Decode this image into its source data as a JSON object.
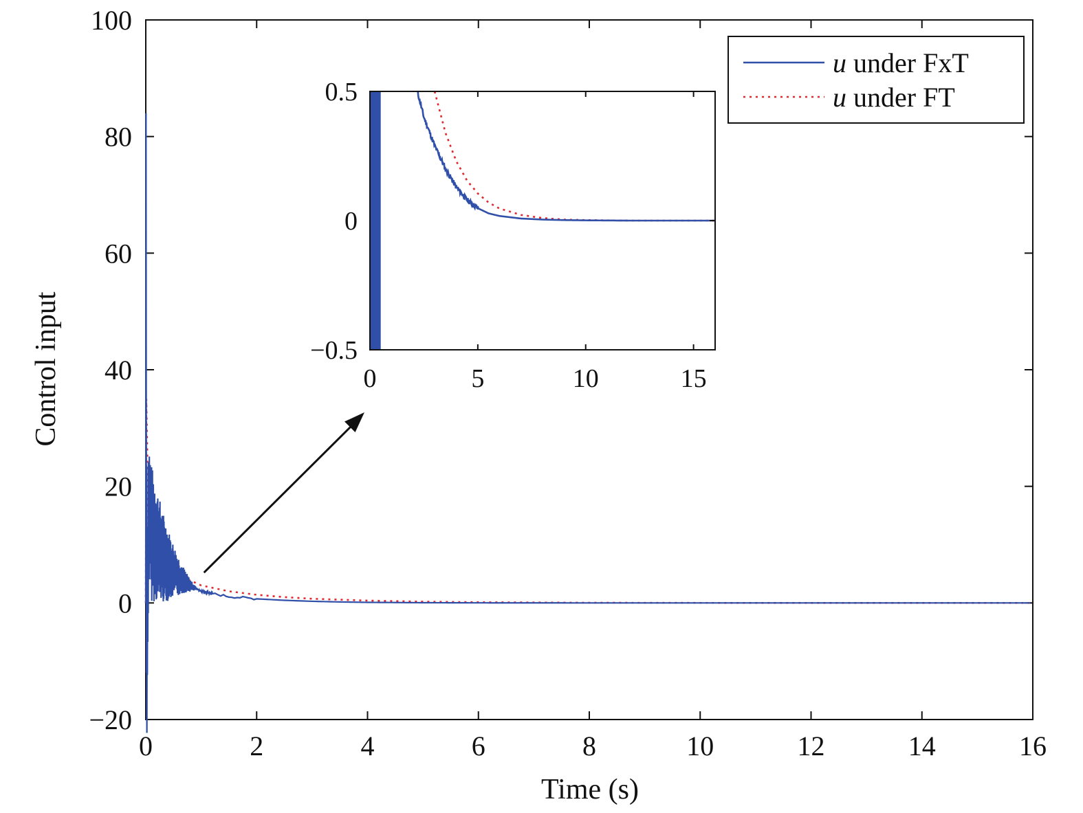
{
  "chart_data": {
    "type": "line",
    "title": "",
    "xlabel": "Time (s)",
    "ylabel": "Control input",
    "xlim": [
      0,
      16
    ],
    "ylim": [
      -20,
      100
    ],
    "xticks": [
      "0",
      "2",
      "4",
      "6",
      "8",
      "10",
      "12",
      "14",
      "16"
    ],
    "yticks": [
      "−20",
      "0",
      "20",
      "40",
      "60",
      "80",
      "100"
    ],
    "grid": false,
    "legend": {
      "placement": "top-right",
      "entries": [
        {
          "italic": "u",
          "text": " under FxT"
        },
        {
          "italic": "u",
          "text": " under FT"
        }
      ]
    },
    "series": [
      {
        "name": "u under FxT",
        "color": "#2f4fa8",
        "style": "solid",
        "x": [
          0,
          0.005,
          0.02,
          0.05,
          0.1,
          0.2,
          0.3,
          0.4,
          0.5,
          0.6,
          0.8,
          1.0,
          1.2,
          1.5,
          2.0,
          2.5,
          3.0,
          3.5,
          4.0,
          5.0,
          6.0,
          8.0,
          10.0,
          12.0,
          14.0,
          16.0
        ],
        "y": [
          0,
          84,
          -12,
          16,
          12,
          10,
          8,
          6.5,
          5.5,
          4.5,
          3,
          2,
          1.6,
          1.1,
          0.7,
          0.45,
          0.28,
          0.17,
          0.1,
          0.04,
          0.015,
          0.003,
          0,
          0,
          0,
          0
        ],
        "oscillation_envelope": {
          "until": 1.0,
          "max_amplitude": 14
        }
      },
      {
        "name": "u under FT",
        "color": "#e0282e",
        "style": "dotted",
        "x": [
          0,
          0.01,
          0.05,
          0.1,
          0.2,
          0.3,
          0.5,
          0.7,
          1.0,
          1.5,
          2.0,
          2.5,
          3.0,
          4.0,
          5.0,
          6.0,
          8.0,
          10.0,
          12.0,
          14.0,
          16.0
        ],
        "y": [
          0,
          35,
          13,
          10,
          8.2,
          7,
          5.5,
          4.3,
          3,
          2,
          1.4,
          1.0,
          0.72,
          0.4,
          0.22,
          0.12,
          0.035,
          0.01,
          0,
          0,
          0
        ]
      }
    ],
    "annotations": [
      {
        "type": "arrow",
        "from": [
          1.05,
          5.2
        ],
        "to": "inset"
      }
    ],
    "inset": {
      "type": "line",
      "xlim": [
        0,
        16
      ],
      "ylim": [
        -0.5,
        0.5
      ],
      "xticks": [
        "0",
        "5",
        "10",
        "15"
      ],
      "yticks": [
        "−0.5",
        "0",
        "0.5"
      ],
      "series": [
        {
          "name": "u under FxT",
          "color": "#2f4fa8",
          "style": "solid",
          "solid_band_until": 0.5,
          "x": [
            2.2,
            2.5,
            3.0,
            3.5,
            4.0,
            4.5,
            5.0,
            5.5,
            6.0,
            7.0,
            8.0,
            9.0,
            10.0,
            12.0,
            14.0,
            16.0
          ],
          "y": [
            0.5,
            0.4,
            0.29,
            0.2,
            0.13,
            0.08,
            0.048,
            0.028,
            0.018,
            0.008,
            0.004,
            0.002,
            0.001,
            0,
            0,
            0
          ]
        },
        {
          "name": "u under FT",
          "color": "#e0282e",
          "style": "dotted",
          "x": [
            3.0,
            3.5,
            4.0,
            4.5,
            5.0,
            5.5,
            6.0,
            7.0,
            8.0,
            9.0,
            10.0,
            12.0,
            14.0,
            16.0
          ],
          "y": [
            0.5,
            0.34,
            0.23,
            0.155,
            0.105,
            0.07,
            0.047,
            0.022,
            0.01,
            0.004,
            0.002,
            0,
            0,
            0
          ]
        }
      ]
    }
  }
}
